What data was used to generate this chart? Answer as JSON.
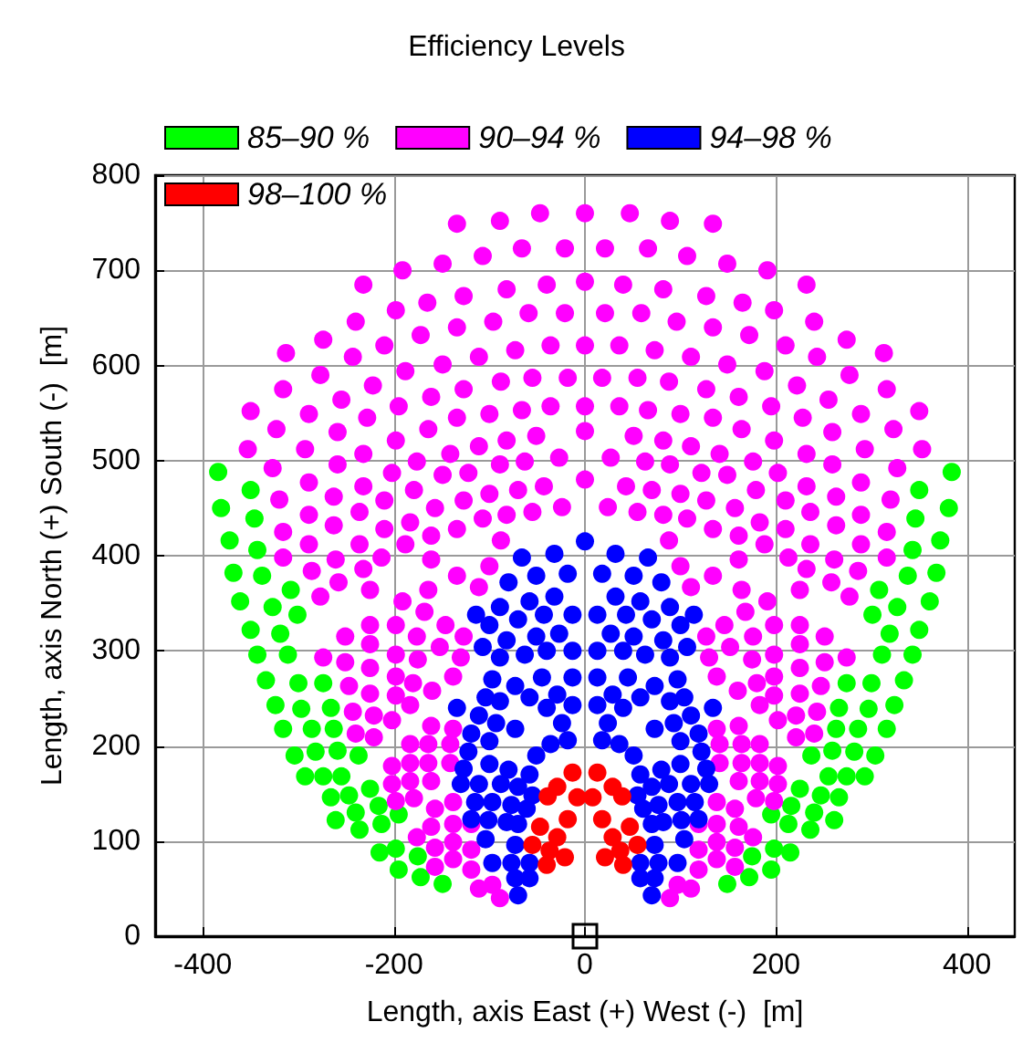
{
  "chart_data": {
    "type": "scatter",
    "legend_title": "Efficiency Levels",
    "xlabel": "Length, axis East (+) West (-)  [m]",
    "ylabel": "Length, axis North (+) South (-)  [m]",
    "xlim": [
      -450,
      450
    ],
    "xticks": [
      -400,
      -200,
      0,
      200,
      400
    ],
    "ylim": [
      0,
      800
    ],
    "yticks": [
      0,
      100,
      200,
      300,
      400,
      500,
      600,
      700,
      800
    ],
    "grid": true,
    "legend": "top",
    "marker": "circle",
    "series": [
      {
        "name": "85–90 %",
        "color": "#00ff00",
        "x": [
          -384,
          -350,
          -381,
          -346,
          -372,
          -343,
          -368,
          -338,
          -361,
          -327,
          -308,
          -350,
          -319,
          -301,
          -343,
          -311,
          -334,
          -300,
          -274,
          -324,
          -297,
          -266,
          -316,
          -286,
          -263,
          -304,
          -282,
          -259,
          -237,
          -293,
          -274,
          -255,
          -266,
          -247,
          -225,
          -261,
          -240,
          -216,
          -236,
          -213,
          -195,
          -215,
          -198,
          -195,
          -175,
          -172,
          -149,
          384,
          350,
          381,
          346,
          372,
          343,
          368,
          338,
          361,
          327,
          308,
          350,
          319,
          301,
          343,
          311,
          334,
          300,
          274,
          324,
          297,
          266,
          316,
          286,
          263,
          304,
          282,
          259,
          237,
          293,
          274,
          255,
          266,
          247,
          225,
          261,
          240,
          216,
          236,
          213,
          195,
          215,
          198,
          195,
          175,
          172,
          149
        ],
        "values": [
          488,
          469,
          450,
          439,
          416,
          406,
          382,
          379,
          352,
          346,
          364,
          322,
          318,
          338,
          296,
          296,
          269,
          266,
          266,
          243,
          239,
          240,
          218,
          218,
          218,
          190,
          194,
          195,
          190,
          168,
          168,
          168,
          146,
          148,
          155,
          122,
          130,
          137,
          112,
          118,
          128,
          88,
          92,
          70,
          84,
          62,
          55,
          488,
          469,
          450,
          439,
          416,
          406,
          382,
          379,
          352,
          346,
          364,
          322,
          318,
          338,
          296,
          296,
          269,
          266,
          266,
          243,
          239,
          240,
          218,
          218,
          218,
          190,
          194,
          195,
          190,
          168,
          168,
          168,
          146,
          148,
          155,
          122,
          130,
          137,
          112,
          118,
          128,
          88,
          92,
          70,
          84,
          62,
          55
        ]
      },
      {
        "name": "90–94 %",
        "color": "#ff00ff",
        "x": [
          -134,
          -89,
          -47,
          -149,
          -107,
          -66,
          -21,
          -191,
          -232,
          -127,
          -82,
          -40,
          -198,
          -165,
          -240,
          -274,
          -313,
          -172,
          -134,
          -96,
          -59,
          -21,
          -210,
          -243,
          -277,
          -316,
          -350,
          -188,
          -149,
          -111,
          -73,
          -36,
          -222,
          -255,
          -289,
          -323,
          -353,
          -327,
          -161,
          -127,
          -88,
          -55,
          -18,
          -195,
          -228,
          -259,
          -293,
          -164,
          -134,
          -100,
          -66,
          -36,
          -198,
          -232,
          -259,
          -176,
          -141,
          -111,
          -82,
          -51,
          -202,
          -289,
          -320,
          -232,
          -263,
          -149,
          -122,
          -89,
          -63,
          -27,
          -179,
          -210,
          -236,
          -289,
          -316,
          -157,
          -127,
          -100,
          -70,
          -43,
          -183,
          -210,
          -263,
          -289,
          -316,
          -161,
          -134,
          -107,
          -82,
          -55,
          -24,
          -88,
          -188,
          -213,
          -236,
          -261,
          -286,
          -258,
          -232,
          -277,
          -225,
          -191,
          -164,
          -161,
          -134,
          -111,
          -100,
          -168,
          -198,
          -225,
          -251,
          -176,
          -146,
          -127,
          -152,
          -175,
          -198,
          -225,
          -274,
          -251,
          -225,
          -198,
          -180,
          -160,
          -138,
          -130,
          -247,
          -225,
          -198,
          -183,
          -243,
          -221,
          -202,
          -240,
          -221,
          -161,
          -138,
          -183,
          -164,
          -141,
          -183,
          -164,
          -141,
          -202,
          -202,
          -183,
          -161,
          -198,
          -179,
          -157,
          -138,
          -176,
          -161,
          -138,
          -119,
          -157,
          -138,
          -119,
          -157,
          -138,
          -119,
          -111,
          -97,
          -89,
          134,
          89,
          47,
          149,
          107,
          66,
          21,
          191,
          232,
          127,
          82,
          40,
          198,
          165,
          240,
          274,
          313,
          172,
          134,
          96,
          59,
          21,
          210,
          243,
          277,
          316,
          350,
          188,
          149,
          111,
          73,
          36,
          222,
          255,
          289,
          323,
          353,
          327,
          161,
          127,
          88,
          55,
          18,
          195,
          228,
          259,
          293,
          164,
          134,
          100,
          66,
          36,
          198,
          232,
          259,
          176,
          141,
          111,
          82,
          51,
          202,
          289,
          320,
          232,
          263,
          149,
          122,
          89,
          63,
          27,
          179,
          210,
          236,
          289,
          316,
          157,
          127,
          100,
          70,
          43,
          183,
          210,
          263,
          289,
          316,
          161,
          134,
          107,
          82,
          55,
          24,
          88,
          188,
          213,
          236,
          261,
          286,
          258,
          232,
          277,
          225,
          191,
          164,
          161,
          134,
          111,
          100,
          168,
          198,
          225,
          251,
          176,
          146,
          127,
          152,
          175,
          198,
          225,
          274,
          251,
          225,
          198,
          180,
          160,
          138,
          130,
          247,
          225,
          198,
          183,
          243,
          221,
          202,
          240,
          221,
          161,
          138,
          183,
          164,
          141,
          183,
          164,
          141,
          202,
          202,
          183,
          161,
          198,
          179,
          157,
          138,
          176,
          161,
          138,
          119,
          157,
          138,
          119,
          157,
          138,
          119,
          111,
          97,
          89,
          0,
          0,
          0,
          0,
          0,
          0
        ],
        "values": [
          749,
          752,
          760,
          707,
          715,
          723,
          723,
          700,
          685,
          673,
          680,
          685,
          658,
          666,
          646,
          627,
          613,
          632,
          640,
          646,
          655,
          655,
          621,
          609,
          590,
          575,
          552,
          594,
          601,
          609,
          616,
          621,
          579,
          564,
          549,
          533,
          512,
          492,
          567,
          575,
          583,
          587,
          587,
          557,
          545,
          530,
          512,
          533,
          545,
          549,
          553,
          557,
          521,
          507,
          496,
          499,
          507,
          515,
          521,
          526,
          487,
          477,
          459,
          473,
          462,
          485,
          487,
          496,
          499,
          503,
          469,
          458,
          446,
          443,
          425,
          450,
          458,
          465,
          469,
          473,
          435,
          428,
          432,
          412,
          398,
          421,
          428,
          439,
          443,
          446,
          451,
          416,
          412,
          398,
          412,
          396,
          384,
          372,
          386,
          357,
          364,
          352,
          364,
          396,
          379,
          367,
          389,
          341,
          327,
          327,
          315,
          315,
          327,
          315,
          304,
          291,
          296,
          307,
          293,
          288,
          282,
          273,
          266,
          258,
          273,
          293,
          263,
          255,
          253,
          243,
          236,
          232,
          227,
          213,
          209,
          221,
          218,
          202,
          202,
          202,
          182,
          182,
          182,
          179,
          160,
          163,
          163,
          142,
          145,
          134,
          141,
          104,
          115,
          118,
          118,
          93,
          99,
          91,
          73,
          81,
          70,
          50,
          54,
          40,
          749,
          752,
          760,
          707,
          715,
          723,
          723,
          700,
          685,
          673,
          680,
          685,
          658,
          666,
          646,
          627,
          613,
          632,
          640,
          646,
          655,
          655,
          621,
          609,
          590,
          575,
          552,
          594,
          601,
          609,
          616,
          621,
          579,
          564,
          549,
          533,
          512,
          492,
          567,
          575,
          583,
          587,
          587,
          557,
          545,
          530,
          512,
          533,
          545,
          549,
          553,
          557,
          521,
          507,
          496,
          499,
          507,
          515,
          521,
          526,
          487,
          477,
          459,
          473,
          462,
          485,
          487,
          496,
          499,
          503,
          469,
          458,
          446,
          443,
          425,
          450,
          458,
          465,
          469,
          473,
          435,
          428,
          432,
          412,
          398,
          421,
          428,
          439,
          443,
          446,
          451,
          416,
          412,
          398,
          412,
          396,
          384,
          372,
          386,
          357,
          364,
          352,
          364,
          396,
          379,
          367,
          389,
          341,
          327,
          327,
          315,
          315,
          327,
          315,
          304,
          291,
          296,
          307,
          293,
          288,
          282,
          273,
          266,
          258,
          273,
          293,
          263,
          255,
          253,
          243,
          236,
          232,
          227,
          213,
          209,
          221,
          218,
          202,
          202,
          202,
          182,
          182,
          182,
          179,
          160,
          163,
          163,
          142,
          145,
          134,
          141,
          104,
          115,
          118,
          118,
          93,
          99,
          91,
          73,
          81,
          70,
          50,
          54,
          40,
          760,
          688,
          621,
          557,
          531,
          480
        ]
      },
      {
        "name": "94–98 %",
        "color": "#0000ff",
        "x": [
          -66,
          -32,
          -80,
          -51,
          -18,
          -114,
          -89,
          -58,
          -32,
          -100,
          -70,
          -43,
          -13,
          -107,
          -82,
          -51,
          -27,
          -89,
          -63,
          -40,
          -13,
          -97,
          -73,
          -45,
          -13,
          -104,
          -89,
          -58,
          -29,
          -13,
          -134,
          -111,
          -93,
          -73,
          -40,
          -24,
          -119,
          -100,
          -51,
          -36,
          -18,
          -122,
          -100,
          -80,
          -58,
          -127,
          -130,
          -111,
          -88,
          -70,
          -55,
          -115,
          -97,
          -77,
          -61,
          -119,
          -101,
          -82,
          -70,
          -104,
          -73,
          -97,
          -77,
          -58,
          -73,
          -58,
          -70,
          66,
          32,
          80,
          51,
          18,
          114,
          89,
          58,
          32,
          100,
          70,
          43,
          13,
          107,
          82,
          51,
          27,
          89,
          63,
          40,
          13,
          97,
          73,
          45,
          13,
          104,
          89,
          58,
          29,
          13,
          134,
          111,
          93,
          73,
          40,
          24,
          119,
          100,
          51,
          36,
          18,
          122,
          100,
          80,
          58,
          127,
          130,
          111,
          88,
          70,
          55,
          115,
          97,
          77,
          61,
          119,
          101,
          82,
          70,
          104,
          73,
          97,
          77,
          58,
          73,
          58,
          70,
          0
        ],
        "values": [
          398,
          402,
          372,
          379,
          381,
          338,
          346,
          352,
          357,
          327,
          333,
          338,
          338,
          304,
          311,
          315,
          318,
          293,
          296,
          300,
          300,
          270,
          263,
          272,
          272,
          251,
          247,
          251,
          254,
          243,
          240,
          232,
          224,
          218,
          240,
          224,
          213,
          205,
          190,
          202,
          206,
          194,
          181,
          175,
          170,
          176,
          160,
          160,
          160,
          157,
          148,
          141,
          141,
          138,
          134,
          123,
          122,
          120,
          118,
          102,
          96,
          77,
          77,
          77,
          61,
          61,
          43,
          398,
          402,
          372,
          379,
          381,
          338,
          346,
          352,
          357,
          327,
          333,
          338,
          338,
          304,
          311,
          315,
          318,
          293,
          296,
          300,
          300,
          270,
          263,
          272,
          272,
          251,
          247,
          251,
          254,
          243,
          240,
          232,
          224,
          218,
          240,
          224,
          213,
          205,
          190,
          202,
          206,
          194,
          181,
          175,
          170,
          176,
          160,
          160,
          160,
          157,
          148,
          141,
          141,
          138,
          134,
          123,
          122,
          120,
          118,
          102,
          96,
          77,
          77,
          77,
          61,
          61,
          43,
          415
        ]
      },
      {
        "name": "98–100 %",
        "color": "#ff0000",
        "x": [
          -13,
          -29,
          -39,
          -8,
          -47,
          -18,
          -55,
          -29,
          -37,
          -21,
          -40,
          13,
          29,
          39,
          8,
          47,
          18,
          55,
          29,
          37,
          21,
          40
        ],
        "values": [
          172,
          157,
          147,
          146,
          115,
          123,
          96,
          104,
          90,
          83,
          75,
          172,
          157,
          147,
          146,
          115,
          123,
          96,
          104,
          90,
          83,
          75
        ]
      },
      {
        "type": "scatter",
        "marker": "square",
        "color": "#000000",
        "x": [
          0
        ],
        "values": [
          0
        ]
      }
    ]
  }
}
